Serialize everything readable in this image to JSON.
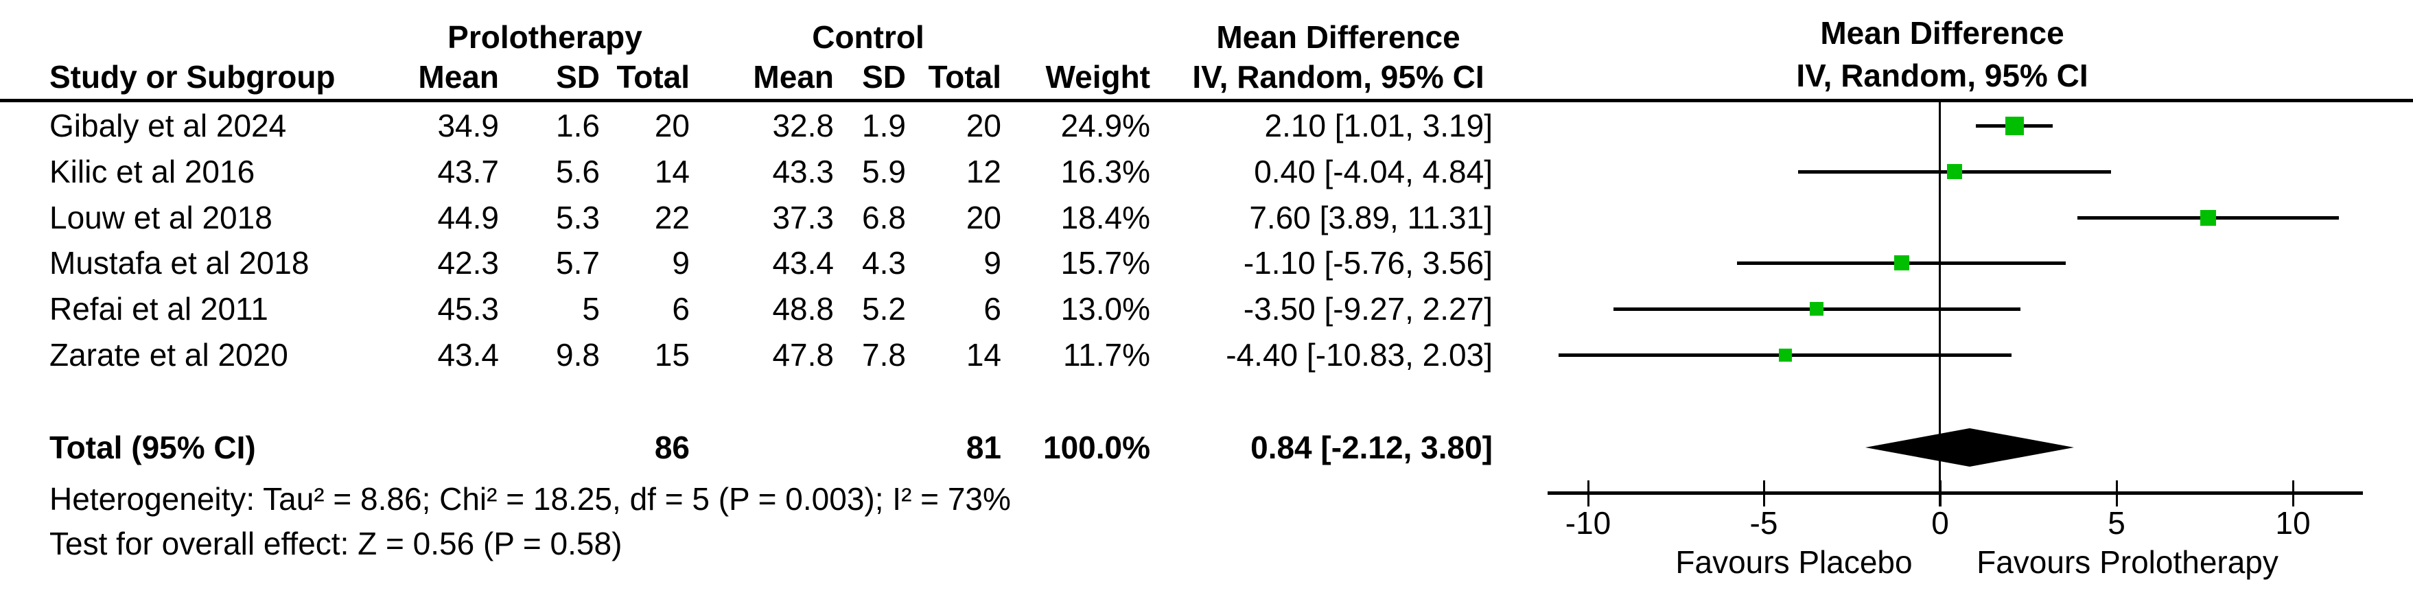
{
  "colors": {
    "marker_green": "#00bf00",
    "line_black": "#000000",
    "background": "#ffffff"
  },
  "table": {
    "group_headers": {
      "experimental": "Prolotherapy",
      "control": "Control",
      "effect_left": "Mean Difference",
      "effect_right": "Mean Difference"
    },
    "col_headers": {
      "study": "Study or Subgroup",
      "mean1": "Mean",
      "sd1": "SD",
      "total1": "Total",
      "mean2": "Mean",
      "sd2": "SD",
      "total2": "Total",
      "weight": "Weight",
      "ci_left": "IV, Random, 95% CI",
      "ci_right": "IV, Random, 95% CI"
    },
    "rows": [
      {
        "study": "Gibaly et al 2024",
        "mean1": "34.9",
        "sd1": "1.6",
        "total1": "20",
        "mean2": "32.8",
        "sd2": "1.9",
        "total2": "20",
        "weight": "24.9%",
        "ci": "2.10 [1.01, 3.19]"
      },
      {
        "study": "Kilic et al 2016",
        "mean1": "43.7",
        "sd1": "5.6",
        "total1": "14",
        "mean2": "43.3",
        "sd2": "5.9",
        "total2": "12",
        "weight": "16.3%",
        "ci": "0.40 [-4.04, 4.84]"
      },
      {
        "study": "Louw et al 2018",
        "mean1": "44.9",
        "sd1": "5.3",
        "total1": "22",
        "mean2": "37.3",
        "sd2": "6.8",
        "total2": "20",
        "weight": "18.4%",
        "ci": "7.60 [3.89, 11.31]"
      },
      {
        "study": "Mustafa et al 2018",
        "mean1": "42.3",
        "sd1": "5.7",
        "total1": "9",
        "mean2": "43.4",
        "sd2": "4.3",
        "total2": "9",
        "weight": "15.7%",
        "ci": "-1.10 [-5.76, 3.56]"
      },
      {
        "study": "Refai et al 2011",
        "mean1": "45.3",
        "sd1": "5",
        "total1": "6",
        "mean2": "48.8",
        "sd2": "5.2",
        "total2": "6",
        "weight": "13.0%",
        "ci": "-3.50 [-9.27, 2.27]"
      },
      {
        "study": "Zarate et al 2020",
        "mean1": "43.4",
        "sd1": "9.8",
        "total1": "15",
        "mean2": "47.8",
        "sd2": "7.8",
        "total2": "14",
        "weight": "11.7%",
        "ci": "-4.40 [-10.83, 2.03]"
      }
    ],
    "total_row": {
      "label": "Total (95% CI)",
      "total1": "86",
      "total2": "81",
      "weight": "100.0%",
      "ci": "0.84 [-2.12, 3.80]"
    },
    "heterogeneity": "Heterogeneity: Tau² = 8.86; Chi² = 18.25, df = 5 (P = 0.003); I² = 73%",
    "overall_effect": "Test for overall effect: Z = 0.56 (P = 0.58)"
  },
  "chart_data": {
    "type": "forest",
    "title": "Mean Difference",
    "effect_measure": "IV, Random, 95% CI",
    "studies": [
      {
        "name": "Gibaly et al 2024",
        "md": 2.1,
        "ci_low": 1.01,
        "ci_high": 3.19,
        "weight_pct": 24.9
      },
      {
        "name": "Kilic et al 2016",
        "md": 0.4,
        "ci_low": -4.04,
        "ci_high": 4.84,
        "weight_pct": 16.3
      },
      {
        "name": "Louw et al 2018",
        "md": 7.6,
        "ci_low": 3.89,
        "ci_high": 11.31,
        "weight_pct": 18.4
      },
      {
        "name": "Mustafa et al 2018",
        "md": -1.1,
        "ci_low": -5.76,
        "ci_high": 3.56,
        "weight_pct": 15.7
      },
      {
        "name": "Refai et al 2011",
        "md": -3.5,
        "ci_low": -9.27,
        "ci_high": 2.27,
        "weight_pct": 13.0
      },
      {
        "name": "Zarate et al 2020",
        "md": -4.4,
        "ci_low": -10.83,
        "ci_high": 2.03,
        "weight_pct": 11.7
      }
    ],
    "total": {
      "label": "Total (95% CI)",
      "md": 0.84,
      "ci_low": -2.12,
      "ci_high": 3.8
    },
    "axis": {
      "xlim": [
        -11.2,
        12
      ],
      "ticks": [
        {
          "value": -10,
          "label": "-10"
        },
        {
          "value": -5,
          "label": "-5"
        },
        {
          "value": 0,
          "label": "0"
        },
        {
          "value": 5,
          "label": "5"
        },
        {
          "value": 10,
          "label": "10"
        }
      ],
      "favours_left": "Favours Placebo",
      "favours_right": "Favours Prolotherapy",
      "grid": false
    }
  }
}
